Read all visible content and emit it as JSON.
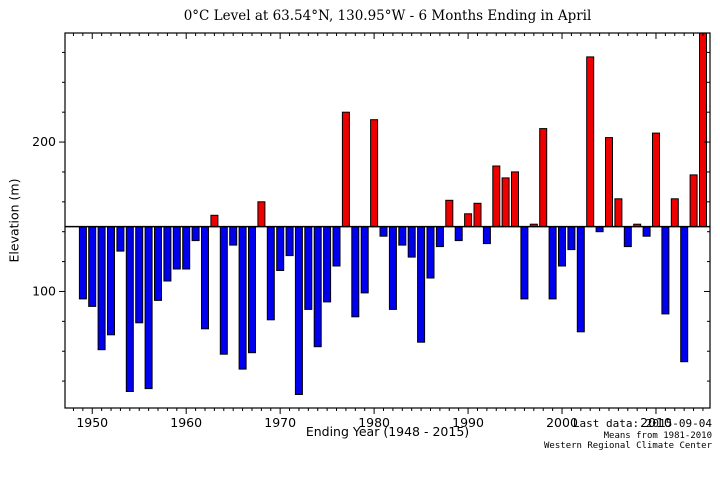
{
  "title": "0°C Level at 63.54°N, 130.95°W - 6 Months Ending in April",
  "xlabel": "Ending Year (1948 - 2015)",
  "ylabel": "Elevation (m)",
  "credits": {
    "line1": "Last data: 2015-09-04",
    "line2": "Means from 1981-2010",
    "line3": "Western Regional Climate Center"
  },
  "colors": {
    "above_mean": "#ee0000",
    "below_mean": "#0000ee",
    "bar_edge": "#000000",
    "axis": "#000000",
    "background": "#ffffff"
  },
  "chart_data": {
    "type": "bar",
    "title": "0°C Level at 63.54°N, 130.95°W - 6 Months Ending in April",
    "xlabel": "Ending Year (1948 - 2015)",
    "ylabel": "Elevation (m)",
    "baseline_mean": 143.4,
    "baseline_note": "Means from 1981-2010",
    "xlim": [
      1947.1,
      2015.75
    ],
    "ylim": [
      22,
      273
    ],
    "xticks_major": [
      1950,
      1960,
      1970,
      1980,
      1990,
      2000,
      2010
    ],
    "xticks_minor_step": 1,
    "yticks_major": [
      100,
      200
    ],
    "yticks_minor_step": 20,
    "grid": false,
    "legend": "none",
    "years": [
      1949,
      1950,
      1951,
      1952,
      1953,
      1954,
      1955,
      1956,
      1957,
      1958,
      1959,
      1960,
      1961,
      1962,
      1963,
      1964,
      1965,
      1966,
      1967,
      1968,
      1969,
      1970,
      1971,
      1972,
      1973,
      1974,
      1975,
      1976,
      1977,
      1978,
      1979,
      1980,
      1981,
      1982,
      1983,
      1984,
      1985,
      1986,
      1987,
      1988,
      1989,
      1990,
      1991,
      1992,
      1993,
      1994,
      1995,
      1996,
      1997,
      1998,
      1999,
      2000,
      2001,
      2002,
      2003,
      2004,
      2005,
      2006,
      2007,
      2008,
      2009,
      2010,
      2011,
      2012,
      2013,
      2014,
      2015
    ],
    "values": [
      95,
      90,
      61,
      71,
      127,
      33,
      79,
      35,
      94,
      107,
      115,
      115,
      134,
      75,
      151,
      58,
      131,
      48,
      59,
      160,
      81,
      114,
      124,
      31,
      88,
      63,
      93,
      117,
      220,
      83,
      99,
      215,
      137,
      88,
      131,
      123,
      66,
      109,
      130,
      161,
      134,
      152,
      159,
      132,
      184,
      176,
      180,
      95,
      145,
      209,
      95,
      117,
      128,
      73,
      257,
      140,
      203,
      162,
      130,
      145,
      137,
      206,
      85,
      162,
      53,
      178,
      273
    ]
  }
}
